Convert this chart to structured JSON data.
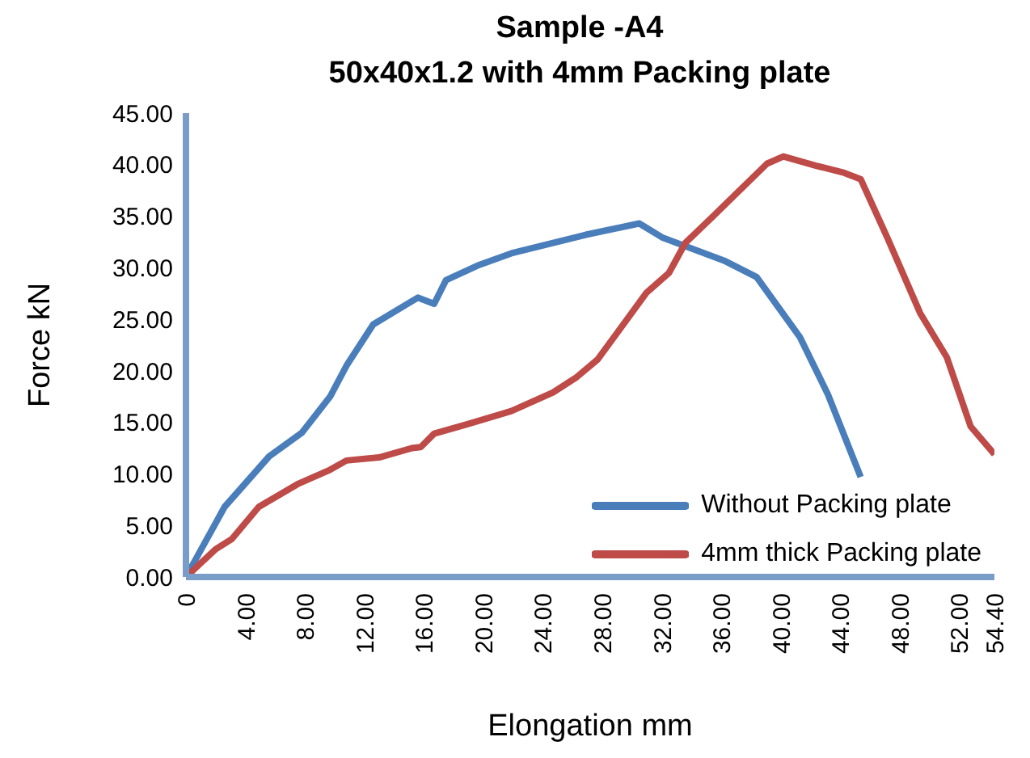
{
  "chart_data": {
    "type": "line",
    "title": "Sample -A4",
    "subtitle": "50x40x1.2 with 4mm Packing plate",
    "xlabel": "Elongation mm",
    "ylabel": "Force kN",
    "xlim": [
      0,
      54.4
    ],
    "xticks": [
      {
        "value": 0,
        "label": "0"
      },
      {
        "value": 4,
        "label": "4.00"
      },
      {
        "value": 8,
        "label": "8.00"
      },
      {
        "value": 12,
        "label": "12.00"
      },
      {
        "value": 16,
        "label": "16.00"
      },
      {
        "value": 20,
        "label": "20.00"
      },
      {
        "value": 24,
        "label": "24.00"
      },
      {
        "value": 28,
        "label": "28.00"
      },
      {
        "value": 32,
        "label": "32.00"
      },
      {
        "value": 36,
        "label": "36.00"
      },
      {
        "value": 40,
        "label": "40.00"
      },
      {
        "value": 44,
        "label": "44.00"
      },
      {
        "value": 48,
        "label": "48.00"
      },
      {
        "value": 52,
        "label": "52.00"
      },
      {
        "value": 54.4,
        "label": "54.40"
      }
    ],
    "ylim": [
      0,
      45
    ],
    "yticks": [
      {
        "value": 0,
        "label": "0.00"
      },
      {
        "value": 5,
        "label": "5.00"
      },
      {
        "value": 10,
        "label": "10.00"
      },
      {
        "value": 15,
        "label": "15.00"
      },
      {
        "value": 20,
        "label": "20.00"
      },
      {
        "value": 25,
        "label": "25.00"
      },
      {
        "value": 30,
        "label": "30.00"
      },
      {
        "value": 35,
        "label": "35.00"
      },
      {
        "value": 40,
        "label": "40.00"
      },
      {
        "value": 45,
        "label": "45.00"
      }
    ],
    "grid": false,
    "legend": "bottom right",
    "marker": "none",
    "line_style": "solid",
    "series": [
      {
        "name": "Without Packing plate",
        "color": "#4a7ebb",
        "x": [
          0,
          2.6,
          5.6,
          7.8,
          9.7,
          10.8,
          12.6,
          15.6,
          16.7,
          17.5,
          19.6,
          21.9,
          24.7,
          26.9,
          30.5,
          32.1,
          36.2,
          38.4,
          41.3,
          43.2,
          45.4
        ],
        "values": [
          0,
          6.8,
          11.7,
          14.0,
          17.5,
          20.5,
          24.5,
          27.1,
          26.5,
          28.8,
          30.2,
          31.4,
          32.4,
          33.2,
          34.3,
          32.9,
          30.7,
          29.1,
          23.3,
          17.7,
          9.7
        ]
      },
      {
        "name": "4mm thick Packing plate",
        "color": "#be4b48",
        "x": [
          0,
          2.0,
          3.1,
          4.9,
          7.5,
          9.7,
          10.8,
          13.0,
          15.2,
          15.8,
          16.7,
          18.9,
          21.9,
          24.7,
          26.3,
          27.7,
          31.0,
          32.5,
          33.6,
          35.4,
          39.1,
          40.2,
          42.4,
          44.3,
          45.4,
          47.2,
          49.4,
          51.2,
          52.8,
          54.4
        ],
        "values": [
          0,
          2.7,
          3.7,
          6.8,
          9.0,
          10.4,
          11.3,
          11.6,
          12.5,
          12.6,
          13.9,
          14.8,
          16.1,
          17.9,
          19.4,
          21.1,
          27.6,
          29.5,
          32.4,
          34.9,
          40.1,
          40.8,
          39.9,
          39.2,
          38.6,
          32.9,
          25.6,
          21.3,
          14.6,
          11.9
        ]
      }
    ]
  }
}
